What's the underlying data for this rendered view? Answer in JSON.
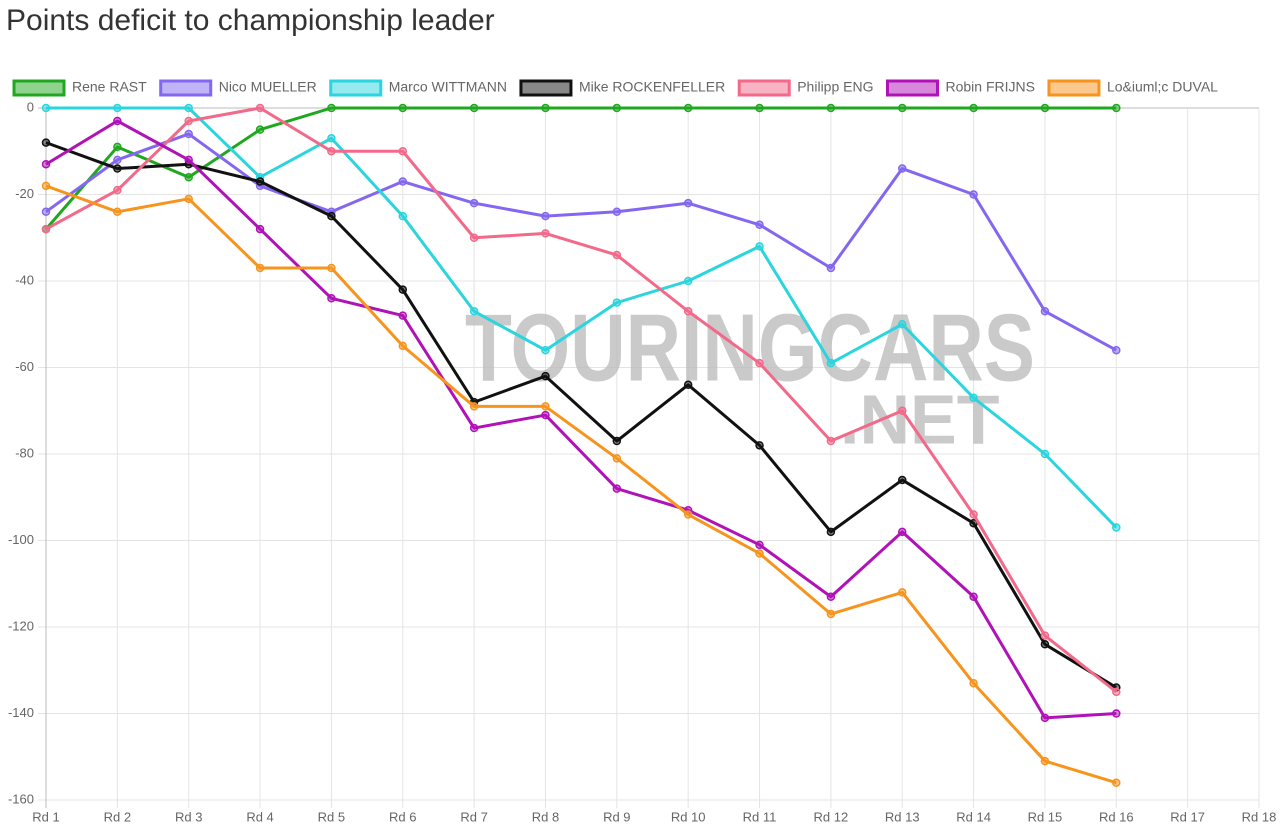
{
  "chart_data": {
    "type": "line",
    "title": "Points deficit to championship leader",
    "watermark": [
      "TOURINGCARS",
      ".NET"
    ],
    "categories": [
      "Rd 1",
      "Rd 2",
      "Rd 3",
      "Rd 4",
      "Rd 5",
      "Rd 6",
      "Rd 7",
      "Rd 8",
      "Rd 9",
      "Rd 10",
      "Rd 11",
      "Rd 12",
      "Rd 13",
      "Rd 14",
      "Rd 15",
      "Rd 16",
      "Rd 17",
      "Rd 18"
    ],
    "ylim": [
      -160,
      0
    ],
    "yticks": [
      0,
      -20,
      -40,
      -60,
      -80,
      -100,
      -120,
      -140,
      -160
    ],
    "grid": true,
    "legend": "top",
    "series": [
      {
        "name": "Rene RAST",
        "color": "#1fa81f",
        "values": [
          -28,
          -9,
          -16,
          -5,
          0,
          0,
          0,
          0,
          0,
          0,
          0,
          0,
          0,
          0,
          0,
          0,
          null,
          null
        ]
      },
      {
        "name": "Nico MUELLER",
        "color": "#8467f0",
        "values": [
          -24,
          -12,
          -6,
          -18,
          -24,
          -17,
          -22,
          -25,
          -24,
          -22,
          -27,
          -37,
          -14,
          -20,
          -47,
          -56,
          null,
          null
        ]
      },
      {
        "name": "Marco WITTMANN",
        "color": "#2ad5dd",
        "values": [
          0,
          0,
          0,
          -16,
          -7,
          -25,
          -47,
          -56,
          -45,
          -40,
          -32,
          -59,
          -50,
          -67,
          -80,
          -97,
          null,
          null
        ]
      },
      {
        "name": "Mike ROCKENFELLER",
        "color": "#111111",
        "values": [
          -8,
          -14,
          -13,
          -17,
          -25,
          -42,
          -68,
          -62,
          -77,
          -64,
          -78,
          -98,
          -86,
          -96,
          -124,
          -134,
          null,
          null
        ]
      },
      {
        "name": "Philipp ENG",
        "color": "#f2698a",
        "values": [
          -28,
          -19,
          -3,
          0,
          -10,
          -10,
          -30,
          -29,
          -34,
          -47,
          -59,
          -77,
          -70,
          -94,
          -122,
          -135,
          null,
          null
        ]
      },
      {
        "name": "Robin FRIJNS",
        "color": "#b012b8",
        "values": [
          -13,
          -3,
          -12,
          -28,
          -44,
          -48,
          -74,
          -71,
          -88,
          -93,
          -101,
          -113,
          -98,
          -113,
          -141,
          -140,
          null,
          null
        ]
      },
      {
        "name": "Lo&iuml;c DUVAL",
        "color": "#f7941d",
        "values": [
          -18,
          -24,
          -21,
          -37,
          -37,
          -55,
          -69,
          -69,
          -81,
          -94,
          -103,
          -117,
          -112,
          -133,
          -151,
          -156,
          null,
          null
        ]
      }
    ]
  }
}
